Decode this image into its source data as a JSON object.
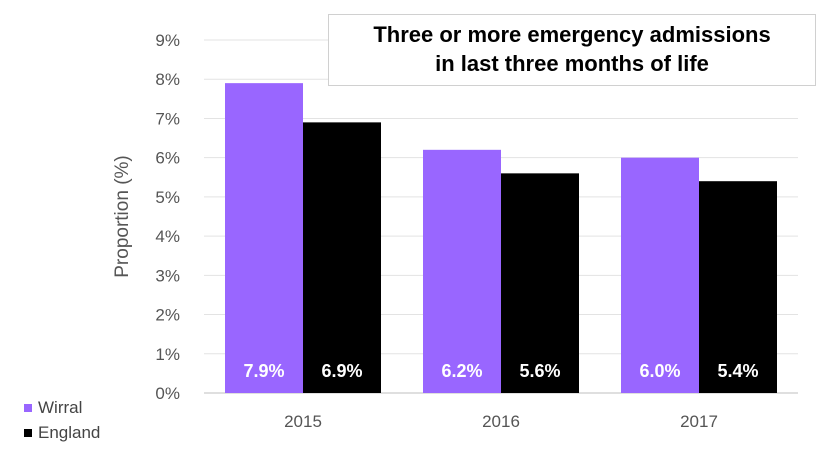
{
  "chart_data": {
    "type": "bar",
    "title": "Three or more emergency admissions in last three months of life",
    "title_lines": [
      "Three or more emergency admissions",
      "in last three months of life"
    ],
    "categories": [
      "2015",
      "2016",
      "2017"
    ],
    "series": [
      {
        "name": "Wirral",
        "values": [
          7.9,
          6.2,
          6.0
        ],
        "labels": [
          "7.9%",
          "6.2%",
          "6.0%"
        ],
        "color": "#9966ff"
      },
      {
        "name": "England",
        "values": [
          6.9,
          5.6,
          5.4
        ],
        "labels": [
          "6.9%",
          "5.6%",
          "5.4%"
        ],
        "color": "#000000"
      }
    ],
    "ylabel": "Proportion (%)",
    "xlabel": "",
    "ylim": [
      0,
      9
    ],
    "yticks": [
      "0%",
      "1%",
      "2%",
      "3%",
      "4%",
      "5%",
      "6%",
      "7%",
      "8%",
      "9%"
    ],
    "grid": true,
    "legend_position": "bottom-left"
  }
}
